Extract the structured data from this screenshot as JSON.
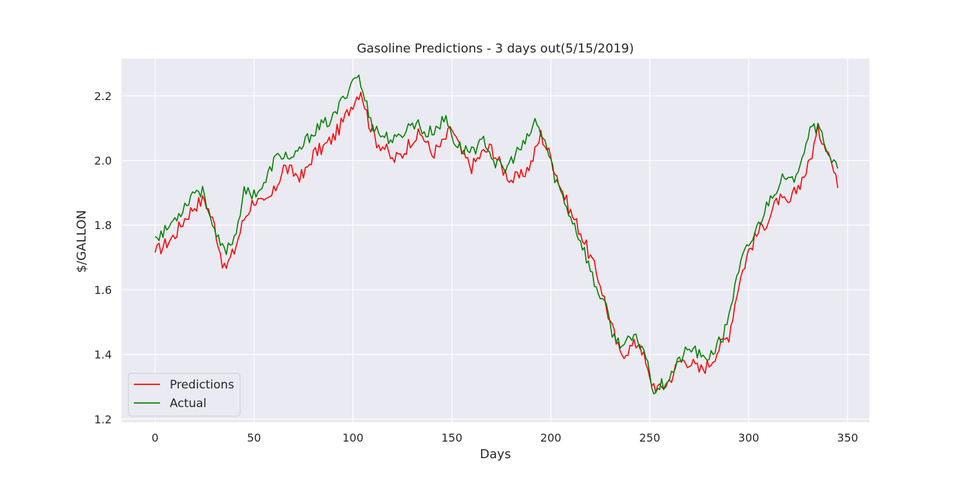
{
  "chart_data": {
    "type": "line",
    "title": "Gasoline Predictions - 3 days out(5/15/2019)",
    "xlabel": "Days",
    "ylabel": "$/GALLON",
    "xlim": [
      -17,
      361
    ],
    "ylim": [
      1.19,
      2.315
    ],
    "xticks": [
      0,
      50,
      100,
      150,
      200,
      250,
      300,
      350
    ],
    "xtick_labels": [
      "0",
      "50",
      "100",
      "150",
      "200",
      "250",
      "300",
      "350"
    ],
    "yticks": [
      1.2,
      1.4,
      1.6,
      1.8,
      2.0,
      2.2
    ],
    "ytick_labels": [
      "1.2",
      "1.4",
      "1.6",
      "1.8",
      "2.0",
      "2.2"
    ],
    "grid": true,
    "legend_position": "lower-left",
    "colors": {
      "Predictions": "#ff0000",
      "Actual": "#008000",
      "background": "#eaeaf2",
      "grid": "#ffffff"
    },
    "series_keypoints": [
      {
        "name": "Predictions",
        "x": [
          0,
          5,
          10,
          15,
          20,
          25,
          30,
          35,
          40,
          45,
          50,
          55,
          60,
          65,
          70,
          75,
          80,
          85,
          90,
          95,
          100,
          104,
          108,
          112,
          116,
          120,
          125,
          130,
          135,
          140,
          145,
          150,
          155,
          160,
          165,
          170,
          175,
          180,
          185,
          190,
          195,
          200,
          205,
          210,
          215,
          220,
          225,
          230,
          235,
          240,
          245,
          250,
          255,
          260,
          265,
          270,
          275,
          280,
          285,
          290,
          295,
          300,
          305,
          310,
          315,
          320,
          325,
          330,
          335,
          340,
          345
        ],
        "y": [
          1.715,
          1.74,
          1.77,
          1.82,
          1.86,
          1.88,
          1.8,
          1.66,
          1.72,
          1.82,
          1.88,
          1.86,
          1.9,
          1.98,
          1.96,
          1.95,
          2.02,
          2.04,
          2.07,
          2.12,
          2.18,
          2.22,
          2.12,
          2.06,
          2.04,
          2.0,
          2.02,
          2.07,
          2.08,
          2.02,
          2.05,
          2.1,
          2.02,
          1.98,
          2.02,
          2.04,
          1.98,
          1.94,
          1.95,
          1.99,
          2.08,
          2.01,
          1.92,
          1.84,
          1.78,
          1.7,
          1.62,
          1.5,
          1.4,
          1.42,
          1.44,
          1.32,
          1.29,
          1.32,
          1.38,
          1.38,
          1.35,
          1.37,
          1.42,
          1.46,
          1.62,
          1.72,
          1.78,
          1.82,
          1.88,
          1.86,
          1.92,
          1.98,
          2.09,
          2.04,
          1.915
        ]
      },
      {
        "name": "Actual",
        "x": [
          0,
          5,
          10,
          15,
          20,
          25,
          30,
          35,
          40,
          45,
          50,
          55,
          60,
          65,
          70,
          75,
          80,
          85,
          90,
          95,
          100,
          102,
          106,
          110,
          114,
          118,
          122,
          127,
          132,
          137,
          142,
          147,
          152,
          157,
          162,
          167,
          172,
          177,
          182,
          187,
          192,
          197,
          202,
          207,
          212,
          217,
          222,
          227,
          232,
          237,
          242,
          247,
          252,
          257,
          262,
          267,
          272,
          277,
          282,
          287,
          292,
          297,
          302,
          307,
          312,
          317,
          322,
          327,
          332,
          337,
          342,
          345
        ],
        "y": [
          1.765,
          1.78,
          1.82,
          1.86,
          1.91,
          1.9,
          1.77,
          1.72,
          1.76,
          1.9,
          1.9,
          1.92,
          2.0,
          2.02,
          2.0,
          2.05,
          2.09,
          2.11,
          2.13,
          2.19,
          2.25,
          2.27,
          2.19,
          2.11,
          2.08,
          2.07,
          2.06,
          2.1,
          2.12,
          2.08,
          2.1,
          2.13,
          2.05,
          2.03,
          2.04,
          2.06,
          1.99,
          1.97,
          2.02,
          2.05,
          2.12,
          2.06,
          1.95,
          1.87,
          1.8,
          1.72,
          1.62,
          1.56,
          1.45,
          1.43,
          1.45,
          1.42,
          1.29,
          1.31,
          1.35,
          1.4,
          1.42,
          1.38,
          1.41,
          1.45,
          1.58,
          1.7,
          1.76,
          1.83,
          1.9,
          1.94,
          1.93,
          2.02,
          2.12,
          2.08,
          2.0,
          1.975
        ]
      }
    ],
    "series": [
      {
        "name": "Predictions",
        "values": []
      },
      {
        "name": "Actual",
        "values": []
      }
    ]
  }
}
